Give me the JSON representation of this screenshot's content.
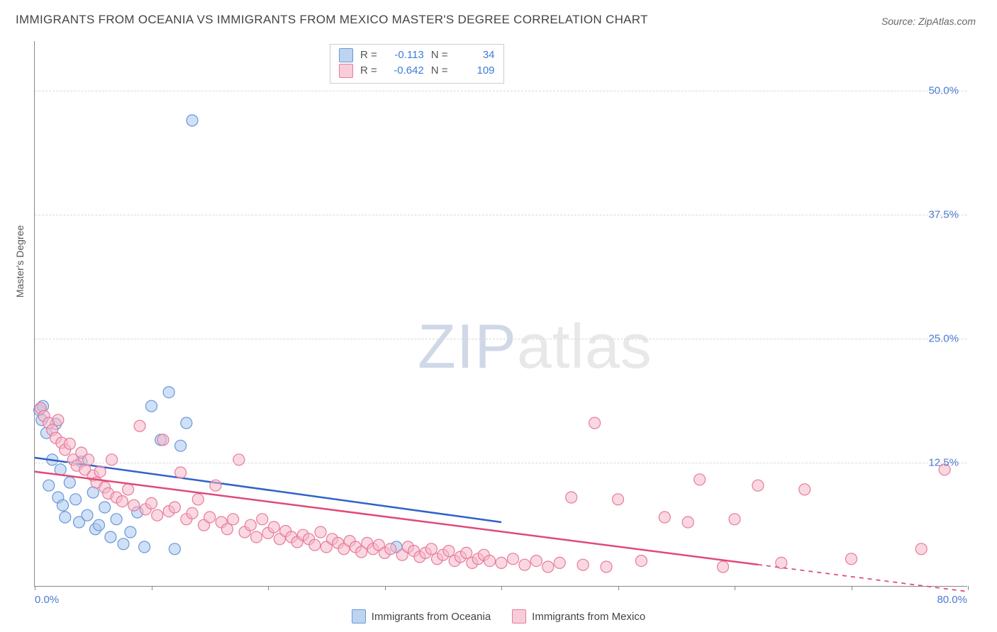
{
  "title": "IMMIGRANTS FROM OCEANIA VS IMMIGRANTS FROM MEXICO MASTER'S DEGREE CORRELATION CHART",
  "source_label": "Source:",
  "source_value": "ZipAtlas.com",
  "y_axis_label": "Master's Degree",
  "watermark": {
    "zip": "ZIP",
    "atlas": "atlas"
  },
  "chart": {
    "type": "scatter",
    "background_color": "#ffffff",
    "grid_color": "#d8d8d8",
    "axis_color": "#888888",
    "xlim": [
      0,
      80
    ],
    "ylim": [
      0,
      55
    ],
    "x_ticks": [
      0,
      10,
      20,
      30,
      40,
      50,
      60,
      70,
      80
    ],
    "x_tick_labels": {
      "0": "0.0%",
      "80": "80.0%"
    },
    "y_ticks": [
      12.5,
      25.0,
      37.5,
      50.0
    ],
    "y_tick_labels": [
      "12.5%",
      "25.0%",
      "37.5%",
      "50.0%"
    ],
    "series": [
      {
        "name": "Immigrants from Oceania",
        "color_fill": "#a9c7ee",
        "color_stroke": "#6798d8",
        "swatch_fill": "#bcd4f0",
        "swatch_stroke": "#6798d8",
        "marker_radius": 8,
        "fill_opacity": 0.55,
        "R": "-0.113",
        "N": "34",
        "trend": {
          "x1": 0,
          "y1": 13.0,
          "x2": 40,
          "y2": 6.5,
          "solid_end_x": 40,
          "color": "#2f62c9",
          "width": 2.5
        },
        "points": [
          [
            0.4,
            17.8
          ],
          [
            0.6,
            16.8
          ],
          [
            0.7,
            18.2
          ],
          [
            1.0,
            15.5
          ],
          [
            1.2,
            10.2
          ],
          [
            1.5,
            12.8
          ],
          [
            1.8,
            16.4
          ],
          [
            2.0,
            9.0
          ],
          [
            2.2,
            11.8
          ],
          [
            2.4,
            8.2
          ],
          [
            2.6,
            7.0
          ],
          [
            3.0,
            10.5
          ],
          [
            3.5,
            8.8
          ],
          [
            3.8,
            6.5
          ],
          [
            4.0,
            12.6
          ],
          [
            4.5,
            7.2
          ],
          [
            5.0,
            9.5
          ],
          [
            5.2,
            5.8
          ],
          [
            5.5,
            6.2
          ],
          [
            6.0,
            8.0
          ],
          [
            6.5,
            5.0
          ],
          [
            7.0,
            6.8
          ],
          [
            7.6,
            4.3
          ],
          [
            8.2,
            5.5
          ],
          [
            8.8,
            7.5
          ],
          [
            9.4,
            4.0
          ],
          [
            10.0,
            18.2
          ],
          [
            10.8,
            14.8
          ],
          [
            11.5,
            19.6
          ],
          [
            12.0,
            3.8
          ],
          [
            12.5,
            14.2
          ],
          [
            13.0,
            16.5
          ],
          [
            13.5,
            47.0
          ],
          [
            31.0,
            4.0
          ]
        ]
      },
      {
        "name": "Immigrants from Mexico",
        "color_fill": "#f6b8c8",
        "color_stroke": "#e77a9a",
        "swatch_fill": "#f8cdd9",
        "swatch_stroke": "#e77a9a",
        "marker_radius": 8,
        "fill_opacity": 0.55,
        "R": "-0.642",
        "N": "109",
        "trend": {
          "x1": 0,
          "y1": 11.6,
          "x2": 80,
          "y2": -0.5,
          "solid_end_x": 62,
          "color": "#e04a7a",
          "width": 2.5
        },
        "points": [
          [
            0.5,
            18.0
          ],
          [
            0.8,
            17.2
          ],
          [
            1.2,
            16.5
          ],
          [
            1.5,
            15.8
          ],
          [
            1.8,
            15.0
          ],
          [
            2.0,
            16.8
          ],
          [
            2.3,
            14.5
          ],
          [
            2.6,
            13.8
          ],
          [
            3.0,
            14.4
          ],
          [
            3.3,
            12.8
          ],
          [
            3.6,
            12.2
          ],
          [
            4.0,
            13.5
          ],
          [
            4.3,
            11.8
          ],
          [
            4.6,
            12.8
          ],
          [
            5.0,
            11.2
          ],
          [
            5.3,
            10.5
          ],
          [
            5.6,
            11.6
          ],
          [
            6.0,
            10.0
          ],
          [
            6.3,
            9.4
          ],
          [
            6.6,
            12.8
          ],
          [
            7.0,
            9.0
          ],
          [
            7.5,
            8.6
          ],
          [
            8.0,
            9.8
          ],
          [
            8.5,
            8.2
          ],
          [
            9.0,
            16.2
          ],
          [
            9.5,
            7.8
          ],
          [
            10.0,
            8.4
          ],
          [
            10.5,
            7.2
          ],
          [
            11.0,
            14.8
          ],
          [
            11.5,
            7.6
          ],
          [
            12.0,
            8.0
          ],
          [
            12.5,
            11.5
          ],
          [
            13.0,
            6.8
          ],
          [
            13.5,
            7.4
          ],
          [
            14.0,
            8.8
          ],
          [
            14.5,
            6.2
          ],
          [
            15.0,
            7.0
          ],
          [
            15.5,
            10.2
          ],
          [
            16.0,
            6.5
          ],
          [
            16.5,
            5.8
          ],
          [
            17.0,
            6.8
          ],
          [
            17.5,
            12.8
          ],
          [
            18.0,
            5.5
          ],
          [
            18.5,
            6.2
          ],
          [
            19.0,
            5.0
          ],
          [
            19.5,
            6.8
          ],
          [
            20.0,
            5.4
          ],
          [
            20.5,
            6.0
          ],
          [
            21.0,
            4.8
          ],
          [
            21.5,
            5.6
          ],
          [
            22.0,
            5.0
          ],
          [
            22.5,
            4.5
          ],
          [
            23.0,
            5.2
          ],
          [
            23.5,
            4.8
          ],
          [
            24.0,
            4.2
          ],
          [
            24.5,
            5.5
          ],
          [
            25.0,
            4.0
          ],
          [
            25.5,
            4.8
          ],
          [
            26.0,
            4.4
          ],
          [
            26.5,
            3.8
          ],
          [
            27.0,
            4.6
          ],
          [
            27.5,
            4.0
          ],
          [
            28.0,
            3.5
          ],
          [
            28.5,
            4.4
          ],
          [
            29.0,
            3.8
          ],
          [
            29.5,
            4.2
          ],
          [
            30.0,
            3.4
          ],
          [
            30.5,
            3.8
          ],
          [
            31.5,
            3.2
          ],
          [
            32.0,
            4.0
          ],
          [
            32.5,
            3.6
          ],
          [
            33.0,
            3.0
          ],
          [
            33.5,
            3.4
          ],
          [
            34.0,
            3.8
          ],
          [
            34.5,
            2.8
          ],
          [
            35.0,
            3.2
          ],
          [
            35.5,
            3.6
          ],
          [
            36.0,
            2.6
          ],
          [
            36.5,
            3.0
          ],
          [
            37.0,
            3.4
          ],
          [
            37.5,
            2.4
          ],
          [
            38.0,
            2.8
          ],
          [
            38.5,
            3.2
          ],
          [
            39.0,
            2.6
          ],
          [
            40.0,
            2.4
          ],
          [
            41.0,
            2.8
          ],
          [
            42.0,
            2.2
          ],
          [
            43.0,
            2.6
          ],
          [
            44.0,
            2.0
          ],
          [
            45.0,
            2.4
          ],
          [
            46.0,
            9.0
          ],
          [
            47.0,
            2.2
          ],
          [
            48.0,
            16.5
          ],
          [
            49.0,
            2.0
          ],
          [
            50.0,
            8.8
          ],
          [
            52.0,
            2.6
          ],
          [
            54.0,
            7.0
          ],
          [
            56.0,
            6.5
          ],
          [
            57.0,
            10.8
          ],
          [
            59.0,
            2.0
          ],
          [
            60.0,
            6.8
          ],
          [
            62.0,
            10.2
          ],
          [
            64.0,
            2.4
          ],
          [
            66.0,
            9.8
          ],
          [
            70.0,
            2.8
          ],
          [
            76.0,
            3.8
          ],
          [
            78.0,
            11.8
          ]
        ]
      }
    ]
  },
  "stats_box": {
    "R_label": "R =",
    "N_label": "N ="
  },
  "legend_label_1": "Immigrants from Oceania",
  "legend_label_2": "Immigrants from Mexico"
}
